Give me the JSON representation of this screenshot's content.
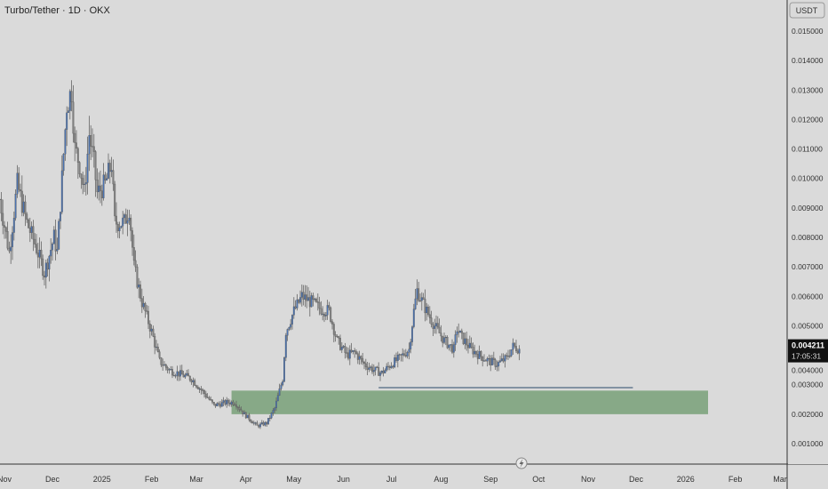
{
  "header": {
    "title": "Turbo/Tether · 1D · OKX",
    "currency": "USDT"
  },
  "last_price": {
    "value": "0.004211",
    "countdown": "17:05:31"
  },
  "colors": {
    "bg": "#dadada",
    "candle": "#808080",
    "candle_up": "#4a72b0",
    "zone": "#87a987",
    "text": "#333333"
  },
  "chart_data": {
    "type": "candlestick",
    "title": "Turbo/Tether · 1D · OKX",
    "ylabel": "USDT",
    "ylim": [
      0.0005,
      0.0155
    ],
    "y_ticks": [
      "0.015000",
      "0.014000",
      "0.013000",
      "0.012000",
      "0.011000",
      "0.010000",
      "0.009000",
      "0.008000",
      "0.007000",
      "0.006000",
      "0.005000",
      "0.004000",
      "0.003000",
      "0.002000",
      "0.001000"
    ],
    "x_ticks": [
      {
        "label": "Nov",
        "day": 0
      },
      {
        "label": "Dec",
        "day": 30
      },
      {
        "label": "2025",
        "day": 61
      },
      {
        "label": "Feb",
        "day": 92
      },
      {
        "label": "Mar",
        "day": 120
      },
      {
        "label": "Apr",
        "day": 151
      },
      {
        "label": "May",
        "day": 181
      },
      {
        "label": "Jun",
        "day": 212
      },
      {
        "label": "Jul",
        "day": 242
      },
      {
        "label": "Aug",
        "day": 273
      },
      {
        "label": "Sep",
        "day": 304
      },
      {
        "label": "Oct",
        "day": 334
      },
      {
        "label": "Nov",
        "day": 365
      },
      {
        "label": "Dec",
        "day": 395
      },
      {
        "label": "2026",
        "day": 426
      },
      {
        "label": "Feb",
        "day": 457
      },
      {
        "label": "Mar",
        "day": 485
      }
    ],
    "x_unit": "days since 2024-11-01",
    "close_anchors": [
      [
        -3,
        0.0093
      ],
      [
        3,
        0.0075
      ],
      [
        8,
        0.0098
      ],
      [
        14,
        0.0085
      ],
      [
        19,
        0.0078
      ],
      [
        25,
        0.0068
      ],
      [
        31,
        0.008
      ],
      [
        33,
        0.0075
      ],
      [
        36,
        0.01
      ],
      [
        39,
        0.0125
      ],
      [
        42,
        0.013
      ],
      [
        44,
        0.011
      ],
      [
        47,
        0.0105
      ],
      [
        50,
        0.0095
      ],
      [
        53,
        0.0115
      ],
      [
        56,
        0.0105
      ],
      [
        58,
        0.0095
      ],
      [
        63,
        0.0098
      ],
      [
        67,
        0.0105
      ],
      [
        69,
        0.0085
      ],
      [
        75,
        0.0085
      ],
      [
        78,
        0.009
      ],
      [
        81,
        0.007
      ],
      [
        86,
        0.0058
      ],
      [
        92,
        0.0048
      ],
      [
        97,
        0.0038
      ],
      [
        103,
        0.0035
      ],
      [
        108,
        0.0034
      ],
      [
        117,
        0.0032
      ],
      [
        125,
        0.0027
      ],
      [
        131,
        0.0023
      ],
      [
        139,
        0.0024
      ],
      [
        144,
        0.0024
      ],
      [
        150,
        0.002
      ],
      [
        158,
        0.0016
      ],
      [
        164,
        0.0017
      ],
      [
        169,
        0.0022
      ],
      [
        174,
        0.0032
      ],
      [
        176,
        0.0048
      ],
      [
        181,
        0.0055
      ],
      [
        186,
        0.006
      ],
      [
        192,
        0.0058
      ],
      [
        197,
        0.0056
      ],
      [
        203,
        0.0055
      ],
      [
        208,
        0.0045
      ],
      [
        214,
        0.004
      ],
      [
        219,
        0.0041
      ],
      [
        225,
        0.0037
      ],
      [
        231,
        0.0035
      ],
      [
        236,
        0.0034
      ],
      [
        242,
        0.0037
      ],
      [
        247,
        0.0039
      ],
      [
        253,
        0.0042
      ],
      [
        256,
        0.0055
      ],
      [
        258,
        0.0062
      ],
      [
        264,
        0.0055
      ],
      [
        269,
        0.005
      ],
      [
        275,
        0.0045
      ],
      [
        281,
        0.0042
      ],
      [
        283,
        0.0049
      ],
      [
        286,
        0.0046
      ],
      [
        292,
        0.0042
      ],
      [
        297,
        0.004
      ],
      [
        303,
        0.0038
      ],
      [
        308,
        0.0037
      ],
      [
        314,
        0.0039
      ],
      [
        318,
        0.0043
      ],
      [
        322,
        0.004211
      ]
    ],
    "zone": {
      "from_day": 142,
      "to_day": 440,
      "top": 0.0028,
      "bottom": 0.002
    },
    "level_line": {
      "from_day": 234,
      "to_day": 393,
      "price": 0.0029
    }
  }
}
